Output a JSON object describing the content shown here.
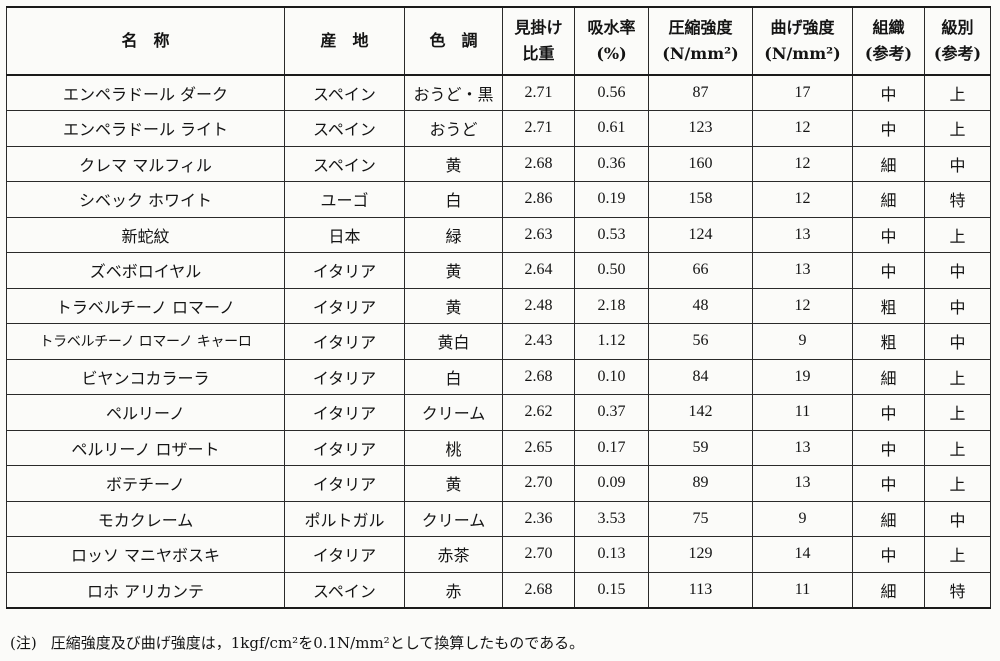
{
  "table": {
    "headers": {
      "name": "名　称",
      "origin": "産　地",
      "color": "色　調",
      "gravity_1": "見掛け",
      "gravity_2": "比重",
      "absorption_1": "吸水率",
      "absorption_2": "(%)",
      "compressive_1": "圧縮強度",
      "compressive_2": "(N/mm²)",
      "bending_1": "曲げ強度",
      "bending_2": "(N/mm²)",
      "texture_1": "組織",
      "texture_2": "(参考)",
      "grade_1": "級別",
      "grade_2": "(参考)"
    },
    "rows": [
      {
        "name": "エンペラドール ダーク",
        "origin": "スペイン",
        "color": "おうど・黒",
        "gravity": "2.71",
        "absorption": "0.56",
        "compressive": "87",
        "bending": "17",
        "texture": "中",
        "grade": "上"
      },
      {
        "name": "エンペラドール ライト",
        "origin": "スペイン",
        "color": "おうど",
        "gravity": "2.71",
        "absorption": "0.61",
        "compressive": "123",
        "bending": "12",
        "texture": "中",
        "grade": "上"
      },
      {
        "name": "クレマ マルフィル",
        "origin": "スペイン",
        "color": "黄",
        "gravity": "2.68",
        "absorption": "0.36",
        "compressive": "160",
        "bending": "12",
        "texture": "細",
        "grade": "中"
      },
      {
        "name": "シベック ホワイト",
        "origin": "ユーゴ",
        "color": "白",
        "gravity": "2.86",
        "absorption": "0.19",
        "compressive": "158",
        "bending": "12",
        "texture": "細",
        "grade": "特"
      },
      {
        "name": "新蛇紋",
        "origin": "日本",
        "color": "緑",
        "gravity": "2.63",
        "absorption": "0.53",
        "compressive": "124",
        "bending": "13",
        "texture": "中",
        "grade": "上"
      },
      {
        "name": "ズベボロイヤル",
        "origin": "イタリア",
        "color": "黄",
        "gravity": "2.64",
        "absorption": "0.50",
        "compressive": "66",
        "bending": "13",
        "texture": "中",
        "grade": "中"
      },
      {
        "name": "トラベルチーノ ロマーノ",
        "origin": "イタリア",
        "color": "黄",
        "gravity": "2.48",
        "absorption": "2.18",
        "compressive": "48",
        "bending": "12",
        "texture": "粗",
        "grade": "中"
      },
      {
        "name": "トラベルチーノ ロマーノ キャーロ",
        "origin": "イタリア",
        "color": "黄白",
        "gravity": "2.43",
        "absorption": "1.12",
        "compressive": "56",
        "bending": "9",
        "texture": "粗",
        "grade": "中"
      },
      {
        "name": "ビヤンコカラーラ",
        "origin": "イタリア",
        "color": "白",
        "gravity": "2.68",
        "absorption": "0.10",
        "compressive": "84",
        "bending": "19",
        "texture": "細",
        "grade": "上"
      },
      {
        "name": "ペルリーノ",
        "origin": "イタリア",
        "color": "クリーム",
        "gravity": "2.62",
        "absorption": "0.37",
        "compressive": "142",
        "bending": "11",
        "texture": "中",
        "grade": "上"
      },
      {
        "name": "ペルリーノ ロザート",
        "origin": "イタリア",
        "color": "桃",
        "gravity": "2.65",
        "absorption": "0.17",
        "compressive": "59",
        "bending": "13",
        "texture": "中",
        "grade": "上"
      },
      {
        "name": "ボテチーノ",
        "origin": "イタリア",
        "color": "黄",
        "gravity": "2.70",
        "absorption": "0.09",
        "compressive": "89",
        "bending": "13",
        "texture": "中",
        "grade": "上"
      },
      {
        "name": "モカクレーム",
        "origin": "ポルトガル",
        "color": "クリーム",
        "gravity": "2.36",
        "absorption": "3.53",
        "compressive": "75",
        "bending": "9",
        "texture": "細",
        "grade": "中"
      },
      {
        "name": "ロッソ マニヤボスキ",
        "origin": "イタリア",
        "color": "赤茶",
        "gravity": "2.70",
        "absorption": "0.13",
        "compressive": "129",
        "bending": "14",
        "texture": "中",
        "grade": "上"
      },
      {
        "name": "ロホ アリカンテ",
        "origin": "スペイン",
        "color": "赤",
        "gravity": "2.68",
        "absorption": "0.15",
        "compressive": "113",
        "bending": "11",
        "texture": "細",
        "grade": "特"
      }
    ]
  },
  "footnote": {
    "tag": "(注)",
    "text": "圧縮強度及び曲げ強度は，1kgf/cm²を0.1N/mm²として換算したものである。"
  }
}
